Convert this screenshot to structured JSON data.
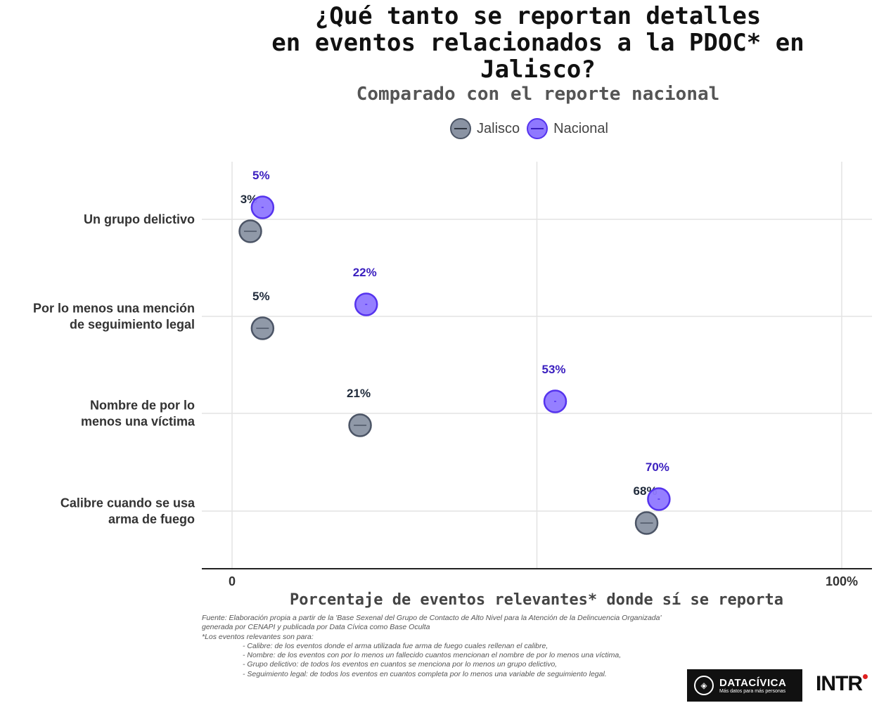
{
  "title": "¿Qué tanto se reportan detalles\nen eventos relacionados a la PDOC* en\nJalisco?",
  "subtitle": "Comparado con el reporte nacional",
  "legend": {
    "jalisco": "Jalisco",
    "nacional": "Nacional"
  },
  "chart_data": {
    "type": "dumbbell",
    "title": "¿Qué tanto se reportan detalles en eventos relacionados a la PDOC* en Jalisco?",
    "subtitle": "Comparado con el reporte nacional",
    "xlabel": "Porcentaje de eventos relevantes* donde sí se reporta",
    "xlim": [
      0,
      100
    ],
    "x_tick_labels": [
      "0",
      "100%"
    ],
    "categories": [
      [
        "Un grupo delictivo"
      ],
      [
        "Por lo menos una mención",
        "de seguimiento legal"
      ],
      [
        "Nombre de por lo",
        "menos una víctima"
      ],
      [
        "Calibre cuando se usa",
        "arma de fuego"
      ]
    ],
    "series": [
      {
        "name": "Jalisco",
        "values": [
          3,
          5,
          21,
          68
        ],
        "labels": [
          "3%",
          "5%",
          "21%",
          "68%"
        ],
        "color": "#8a93a3",
        "stroke": "#4c5566",
        "label_color": "#1f2a3a"
      },
      {
        "name": "Nacional",
        "values": [
          5,
          22,
          53,
          70
        ],
        "labels": [
          "5%",
          "22%",
          "53%",
          "70%"
        ],
        "color": "#8f78ff",
        "stroke": "#5533ee",
        "label_color": "#3a1fbf"
      }
    ],
    "grid": true
  },
  "notes": {
    "source": "Fuente: Elaboración propia a partir de la 'Base Sexenal del Grupo de Contacto de Alto Nivel para la Atención de la Delincuencia Organizada'",
    "source2": "generada por CENAPI y publicada por Data Cívica como Base Oculta",
    "intro": "*Los eventos relevantes son para:",
    "items": [
      "- Calibre: de los eventos donde el arma utilizada fue arma de fuego cuales rellenan el calibre,",
      "- Nombre: de los eventos con por lo menos un fallecido cuantos mencionan el nombre de por lo menos una víctima,",
      "- Grupo delictivo: de todos los eventos  en cuantos  se menciona por lo menos un grupo delictivo,",
      "- Seguimiento legal: de todos los eventos en cuantos completa por lo menos una variable de seguimiento legal."
    ]
  },
  "logos": {
    "datacivica": "DATACÍVICA",
    "datacivica_tag": "Más datos para más personas",
    "intr": "INTR"
  }
}
